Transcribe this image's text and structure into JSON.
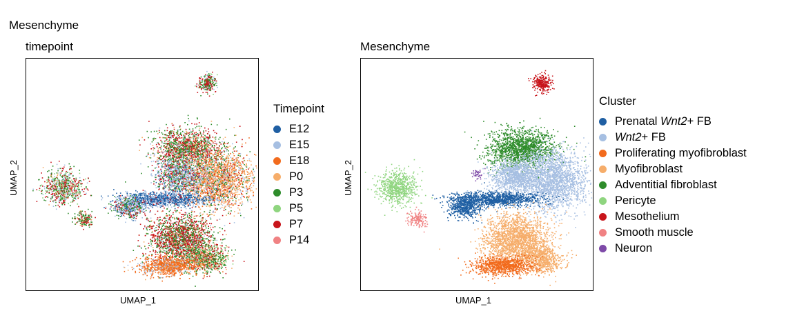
{
  "figure_title": "Mesenchyme",
  "colors": {
    "E12": "#1f5fa3",
    "E15": "#a6bfe2",
    "E18": "#f26b1d",
    "P0": "#f6ad6a",
    "P3": "#2e8c2b",
    "P5": "#8fd57f",
    "P7": "#c8151b",
    "P14": "#f08283",
    "Neuron": "#7e4aa8"
  },
  "chart_data": [
    {
      "type": "scatter",
      "title": "timepoint",
      "xlabel": "UMAP_1",
      "ylabel": "UMAP_2",
      "grid": false,
      "legend_placement": "right",
      "legend": {
        "title": "Timepoint",
        "entries": [
          {
            "label": "E12",
            "color": "#1f5fa3"
          },
          {
            "label": "E15",
            "color": "#a6bfe2"
          },
          {
            "label": "E18",
            "color": "#f26b1d"
          },
          {
            "label": "P0",
            "color": "#f6ad6a"
          },
          {
            "label": "P3",
            "color": "#2e8c2b"
          },
          {
            "label": "P5",
            "color": "#8fd57f"
          },
          {
            "label": "P7",
            "color": "#c8151b"
          },
          {
            "label": "P14",
            "color": "#f08283"
          }
        ]
      }
    },
    {
      "type": "scatter",
      "title": "Mesenchyme",
      "xlabel": "UMAP_1",
      "ylabel": "UMAP_2",
      "grid": false,
      "legend_placement": "right",
      "legend": {
        "title": "Cluster",
        "entries": [
          {
            "label": "Prenatal Wnt2+ FB",
            "pre": "Prenatal ",
            "italic": "Wnt2",
            "post": "+ FB",
            "color": "#1f5fa3"
          },
          {
            "label": "Wnt2+ FB",
            "pre": "",
            "italic": "Wnt2",
            "post": "+ FB",
            "color": "#a6bfe2"
          },
          {
            "label": "Proliferating myofibroblast",
            "pre": "Proliferating myofibroblast",
            "italic": "",
            "post": "",
            "color": "#f26b1d"
          },
          {
            "label": "Myofibroblast",
            "pre": "Myofibroblast",
            "italic": "",
            "post": "",
            "color": "#f6ad6a"
          },
          {
            "label": "Adventitial fibroblast",
            "pre": "Adventitial fibroblast",
            "italic": "",
            "post": "",
            "color": "#2e8c2b"
          },
          {
            "label": "Pericyte",
            "pre": "Pericyte",
            "italic": "",
            "post": "",
            "color": "#8fd57f"
          },
          {
            "label": "Mesothelium",
            "pre": "Mesothelium",
            "italic": "",
            "post": "",
            "color": "#c8151b"
          },
          {
            "label": "Smooth muscle",
            "pre": "Smooth muscle",
            "italic": "",
            "post": "",
            "color": "#f08283"
          },
          {
            "label": "Neuron",
            "pre": "Neuron",
            "italic": "",
            "post": "",
            "color": "#7e4aa8"
          }
        ]
      }
    }
  ]
}
